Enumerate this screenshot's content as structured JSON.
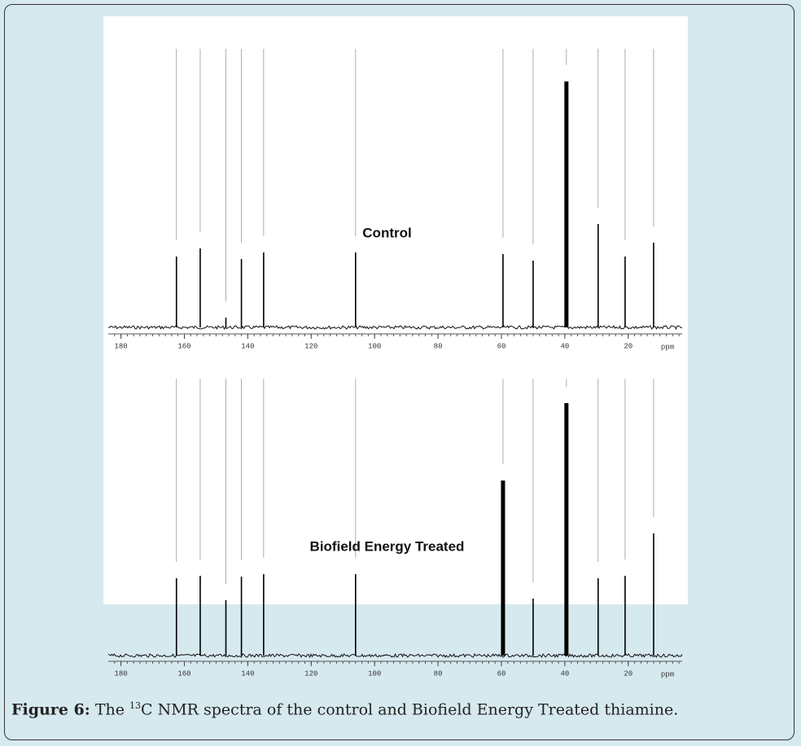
{
  "chart_data": [
    {
      "type": "spectrum",
      "label": "Control",
      "xlabel": "ppm",
      "xlim": [
        184,
        3
      ],
      "xticks": [
        180,
        160,
        140,
        120,
        100,
        80,
        60,
        40,
        20
      ],
      "ylim": [
        0,
        320
      ],
      "color": "#000000",
      "x": [
        162.5,
        155,
        146.9,
        142,
        135,
        106,
        59.5,
        50,
        39.5,
        29.5,
        21,
        12
      ],
      "values": [
        87,
        97,
        12,
        84,
        92,
        92,
        90,
        82,
        302,
        127,
        87,
        104
      ]
    },
    {
      "type": "spectrum",
      "label": "Biofield Energy Treated",
      "xlabel": "ppm",
      "xlim": [
        184,
        3
      ],
      "xticks": [
        180,
        160,
        140,
        120,
        100,
        80,
        60,
        40,
        20
      ],
      "ylim": [
        0,
        320
      ],
      "color": "#000000",
      "x": [
        162.5,
        155,
        146.9,
        142,
        135,
        106,
        59.5,
        50,
        39.5,
        29.5,
        21,
        12
      ],
      "values": [
        95,
        98,
        68,
        97,
        100,
        100,
        215,
        70,
        310,
        95,
        98,
        150
      ]
    }
  ],
  "caption": {
    "label": "Figure 6:",
    "pre": "The",
    "sup": "13",
    "text": "C NMR spectra of the control and Biofield Energy Treated thiamine."
  }
}
